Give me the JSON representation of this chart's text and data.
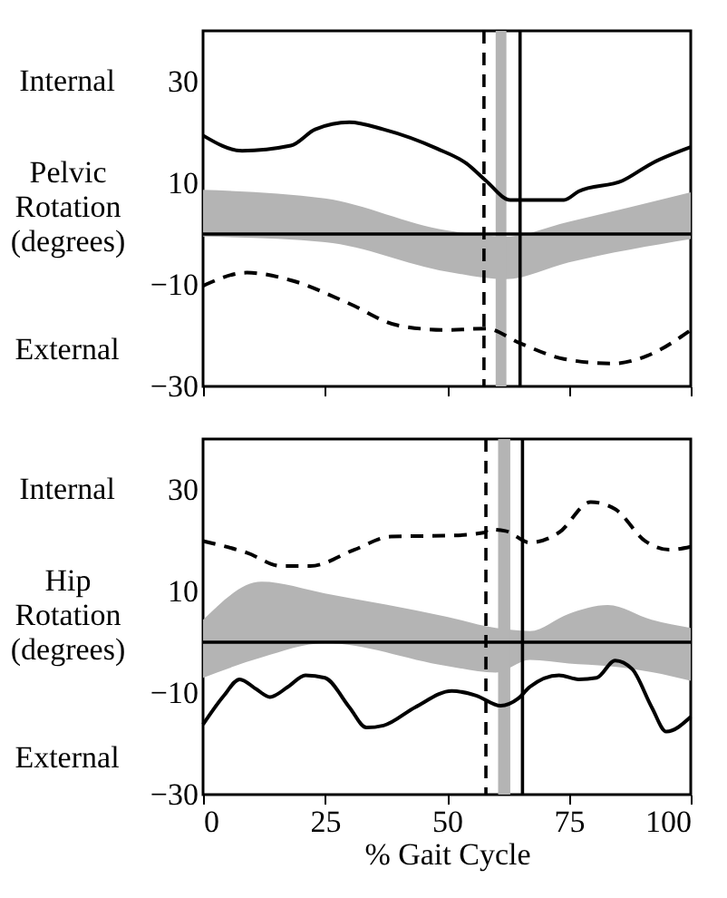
{
  "chart_data": [
    {
      "type": "line",
      "ylabel": "Pelvic Rotation (degrees)",
      "annotations": [
        "Internal",
        "External"
      ],
      "xlim": [
        0,
        100
      ],
      "xticks": [
        0,
        25,
        50,
        75,
        100
      ],
      "ylim": [
        -30,
        40
      ],
      "yticks": [
        -30,
        -10,
        10,
        30
      ],
      "tick_labels": "y",
      "series": [
        {
          "type": "area",
          "color": "#b4b4b4",
          "x": [
            0,
            25,
            50,
            62,
            75,
            100
          ],
          "values": [
            null,
            null,
            null,
            null,
            null,
            null
          ],
          "lower": [
            -0.5,
            -1.6,
            -7.4,
            -8.9,
            -5.6,
            -1.0
          ],
          "upper": [
            8.7,
            7,
            0.7,
            -0.5,
            2.4,
            8.2
          ]
        },
        {
          "color": "#000000",
          "line_style": "solid",
          "x": [
            0,
            8,
            18,
            23,
            30,
            37,
            48,
            54,
            58,
            63,
            74,
            77,
            86,
            92,
            100
          ],
          "values": [
            19.4,
            16.4,
            17.4,
            20.6,
            22,
            20.6,
            16.8,
            13.9,
            10.5,
            6.7,
            6.7,
            8.4,
            10.5,
            13.9,
            17.1
          ]
        },
        {
          "color": "#000000",
          "line_style": "dashed",
          "x": [
            0,
            9,
            18,
            30,
            40,
            50,
            58,
            65,
            74,
            84,
            91,
            100
          ],
          "values": [
            -10.2,
            -7.6,
            -9.1,
            -13.7,
            -18,
            -18.9,
            -18.6,
            -21.5,
            -24.6,
            -25.5,
            -24,
            -18.9
          ]
        }
      ],
      "bands": [
        {
          "axis": "x",
          "from": 60,
          "to": 62.2,
          "color": "#b4b4b4"
        }
      ],
      "ref_lines": [
        {
          "axis": "x",
          "value": 57.6,
          "line_style": "dashed"
        },
        {
          "axis": "x",
          "value": 65,
          "line_style": "solid"
        },
        {
          "axis": "y",
          "value": 0,
          "line_style": "solid"
        }
      ]
    },
    {
      "type": "line",
      "ylabel": "Hip Rotation (degrees)",
      "xlabel": "% Gait Cycle",
      "annotations": [
        "Internal",
        "External"
      ],
      "xlim": [
        0,
        100
      ],
      "xticks": [
        0,
        25,
        50,
        75,
        100
      ],
      "ylim": [
        -30,
        40
      ],
      "yticks": [
        -30,
        -10,
        10,
        30
      ],
      "series": [
        {
          "type": "area",
          "color": "#b4b4b4",
          "x": [
            0,
            12,
            25,
            50,
            60,
            67,
            75,
            83,
            92,
            100
          ],
          "values": [
            null,
            null,
            null,
            null,
            null,
            null,
            null,
            null,
            null,
            null
          ],
          "lower": [
            -7,
            -3,
            -0.2,
            -4.7,
            -6,
            -3.5,
            -4.2,
            -4.7,
            -5.9,
            -7.6
          ],
          "upper": [
            4.4,
            11.9,
            9.6,
            5,
            2.8,
            2.2,
            5.6,
            7.3,
            4.4,
            2.8
          ]
        },
        {
          "color": "#000000",
          "line_style": "dashed",
          "x": [
            0,
            9,
            16,
            22,
            31,
            38.5,
            51,
            57.8,
            58.4,
            62,
            67,
            73,
            79.5,
            84.5,
            90.7,
            95.6,
            100
          ],
          "values": [
            19.9,
            17.6,
            15,
            15,
            18.2,
            20.8,
            21,
            21.6,
            22.2,
            21.9,
            19.6,
            21.6,
            27.6,
            26.2,
            19.9,
            18.2,
            18.8
          ]
        },
        {
          "color": "#000000",
          "line_style": "solid",
          "x": [
            0,
            4.3,
            7.5,
            11,
            13.7,
            17.4,
            21,
            25,
            30,
            33.5,
            37,
            43.5,
            51,
            56,
            61,
            64.6,
            67,
            73,
            77,
            80.7,
            84.5,
            88,
            92,
            95,
            100
          ],
          "values": [
            -16.2,
            -10.5,
            -7.3,
            -9.3,
            -10.8,
            -8.8,
            -6.5,
            -7,
            -12.8,
            -16.8,
            -16.4,
            -12.8,
            -9.6,
            -10.5,
            -12.5,
            -11.1,
            -8.8,
            -6.5,
            -7.3,
            -7,
            -3.6,
            -5.3,
            -12.8,
            -17.6,
            -14.7
          ]
        }
      ],
      "bands": [
        {
          "axis": "x",
          "from": 60.5,
          "to": 63,
          "color": "#b4b4b4"
        }
      ],
      "ref_lines": [
        {
          "axis": "x",
          "value": 58,
          "line_style": "dashed"
        },
        {
          "axis": "x",
          "value": 65.5,
          "line_style": "solid"
        },
        {
          "axis": "y",
          "value": 0,
          "line_style": "solid"
        }
      ]
    }
  ]
}
